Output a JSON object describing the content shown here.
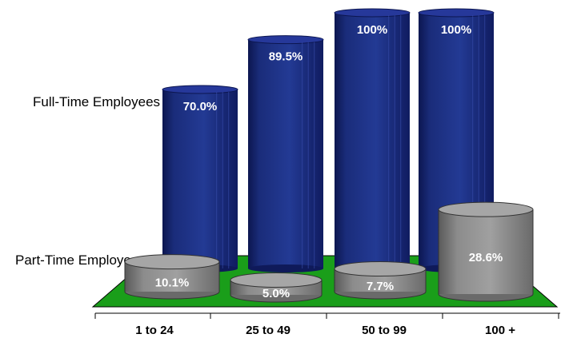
{
  "chart_data": {
    "type": "bar",
    "categories": [
      "1 to 24",
      "25 to 49",
      "50 to 99",
      "100 +"
    ],
    "series": [
      {
        "name": "Full-Time Employees",
        "values": [
          70.0,
          89.5,
          100,
          100
        ],
        "labels": [
          "70.0%",
          "89.5%",
          "100%",
          "100%"
        ]
      },
      {
        "name": "Part-Time Employees",
        "values": [
          10.1,
          5.0,
          7.7,
          28.6
        ],
        "labels": [
          "10.1%",
          "5.0%",
          "7.7%",
          "28.6%"
        ]
      }
    ],
    "ylim": [
      0,
      100
    ],
    "grid": false,
    "colors": {
      "full_time": "#1b2d7a",
      "part_time": "#8c8c8c",
      "floor": "#1aa01a"
    }
  }
}
